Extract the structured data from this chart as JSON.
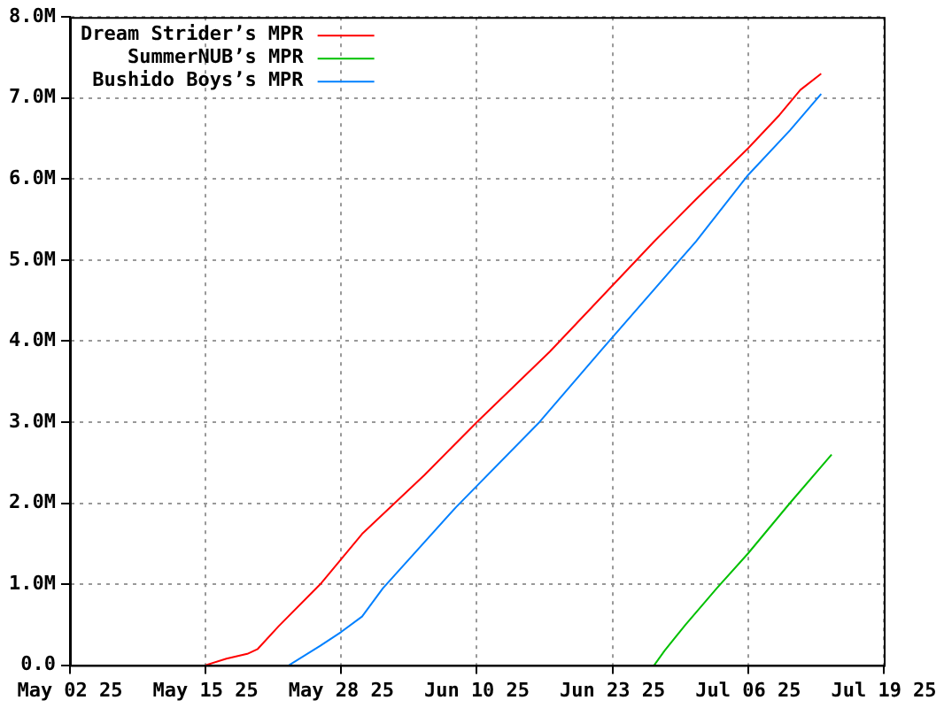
{
  "chart_data": {
    "type": "line",
    "series": [
      {
        "name": "Dream Strider’s MPR",
        "color": "#ff0000",
        "x": [
          "--05-15",
          "--05-17",
          "--05-19",
          "--05-20",
          "--05-22",
          "--05-26",
          "--05-30",
          "--06-05",
          "--06-10",
          "--06-17",
          "--06-22",
          "--06-27",
          "--07-01",
          "--07-06",
          "--07-09",
          "--07-11",
          "--07-13"
        ],
        "values": [
          0,
          80000,
          140000,
          200000,
          480000,
          1000000,
          1620000,
          2350000,
          3000000,
          3870000,
          4550000,
          5230000,
          5750000,
          6380000,
          6790000,
          7100000,
          7300000
        ]
      },
      {
        "name": "SummerNUB’s MPR",
        "color": "#00c000",
        "x": [
          "--06-27",
          "--06-28",
          "--06-30",
          "--07-03",
          "--07-06",
          "--07-10",
          "--07-14"
        ],
        "values": [
          0,
          180000,
          500000,
          950000,
          1380000,
          2000000,
          2600000
        ]
      },
      {
        "name": "Bushido Boys’s MPR",
        "color": "#0080ff",
        "x": [
          "--05-23",
          "--05-26",
          "--05-28",
          "--05-30",
          "--06-01",
          "--06-08",
          "--06-16",
          "--06-22",
          "--07-01",
          "--07-06",
          "--07-10",
          "--07-13"
        ],
        "values": [
          0,
          240000,
          410000,
          600000,
          950000,
          1950000,
          3000000,
          3900000,
          5230000,
          6050000,
          6600000,
          7050000
        ]
      }
    ],
    "xlim": [
      "--05-02",
      "--07-19"
    ],
    "xticks": [
      {
        "value": "--05-02",
        "label": "May 02 25"
      },
      {
        "value": "--05-15",
        "label": "May 15 25"
      },
      {
        "value": "--05-28",
        "label": "May 28 25"
      },
      {
        "value": "--06-10",
        "label": "Jun 10 25"
      },
      {
        "value": "--06-23",
        "label": "Jun 23 25"
      },
      {
        "value": "--07-06",
        "label": "Jul 06 25"
      },
      {
        "value": "--07-19",
        "label": "Jul 19 25"
      }
    ],
    "ylim": [
      0,
      8000000
    ],
    "yticks": [
      {
        "value": 0,
        "label": "0.0"
      },
      {
        "value": 1000000,
        "label": "1.0M"
      },
      {
        "value": 2000000,
        "label": "2.0M"
      },
      {
        "value": 3000000,
        "label": "3.0M"
      },
      {
        "value": 4000000,
        "label": "4.0M"
      },
      {
        "value": 5000000,
        "label": "5.0M"
      },
      {
        "value": 6000000,
        "label": "6.0M"
      },
      {
        "value": 7000000,
        "label": "7.0M"
      },
      {
        "value": 8000000,
        "label": "8.0M"
      }
    ],
    "grid": true,
    "legend": "top left",
    "marker": "none",
    "line_style": "solid"
  }
}
